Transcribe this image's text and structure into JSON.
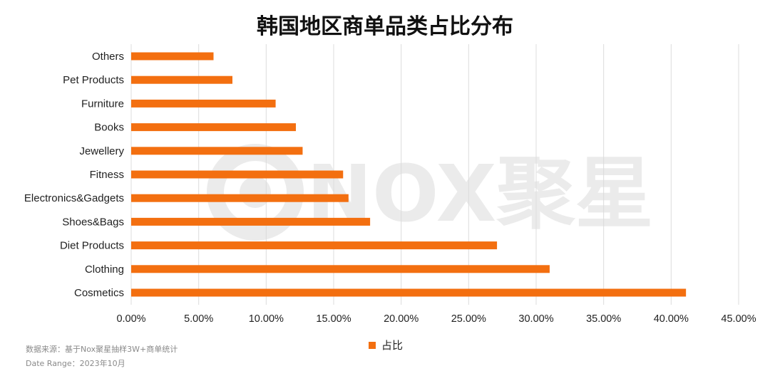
{
  "title": "韩国地区商单品类占比分布",
  "colors": {
    "bar": "#F36F10",
    "grid": "#dcdcdc",
    "watermark": "#ebebeb"
  },
  "watermark": {
    "text": "NOX聚星"
  },
  "legend": {
    "label": "占比"
  },
  "source": {
    "line1": "数据来源：基于Nox聚星抽样3W+商单统计",
    "line2": "Date Range：2023年10月"
  },
  "chart_data": {
    "type": "bar",
    "orientation": "horizontal",
    "title": "韩国地区商单品类占比分布",
    "categories": [
      "Others",
      "Pet Products",
      "Furniture",
      "Books",
      "Jewellery",
      "Fitness",
      "Electronics&Gadgets",
      "Shoes&Bags",
      "Diet Products",
      "Clothing",
      "Cosmetics"
    ],
    "series": [
      {
        "name": "占比",
        "values": [
          6.1,
          7.5,
          10.7,
          12.2,
          12.7,
          15.7,
          16.1,
          17.7,
          27.1,
          31.0,
          41.1
        ]
      }
    ],
    "xlim": [
      0,
      45
    ],
    "xticks": [
      "0.00%",
      "5.00%",
      "10.00%",
      "15.00%",
      "20.00%",
      "25.00%",
      "30.00%",
      "35.00%",
      "40.00%",
      "45.00%"
    ],
    "grid": "vertical",
    "legend_position": "bottom-center"
  }
}
